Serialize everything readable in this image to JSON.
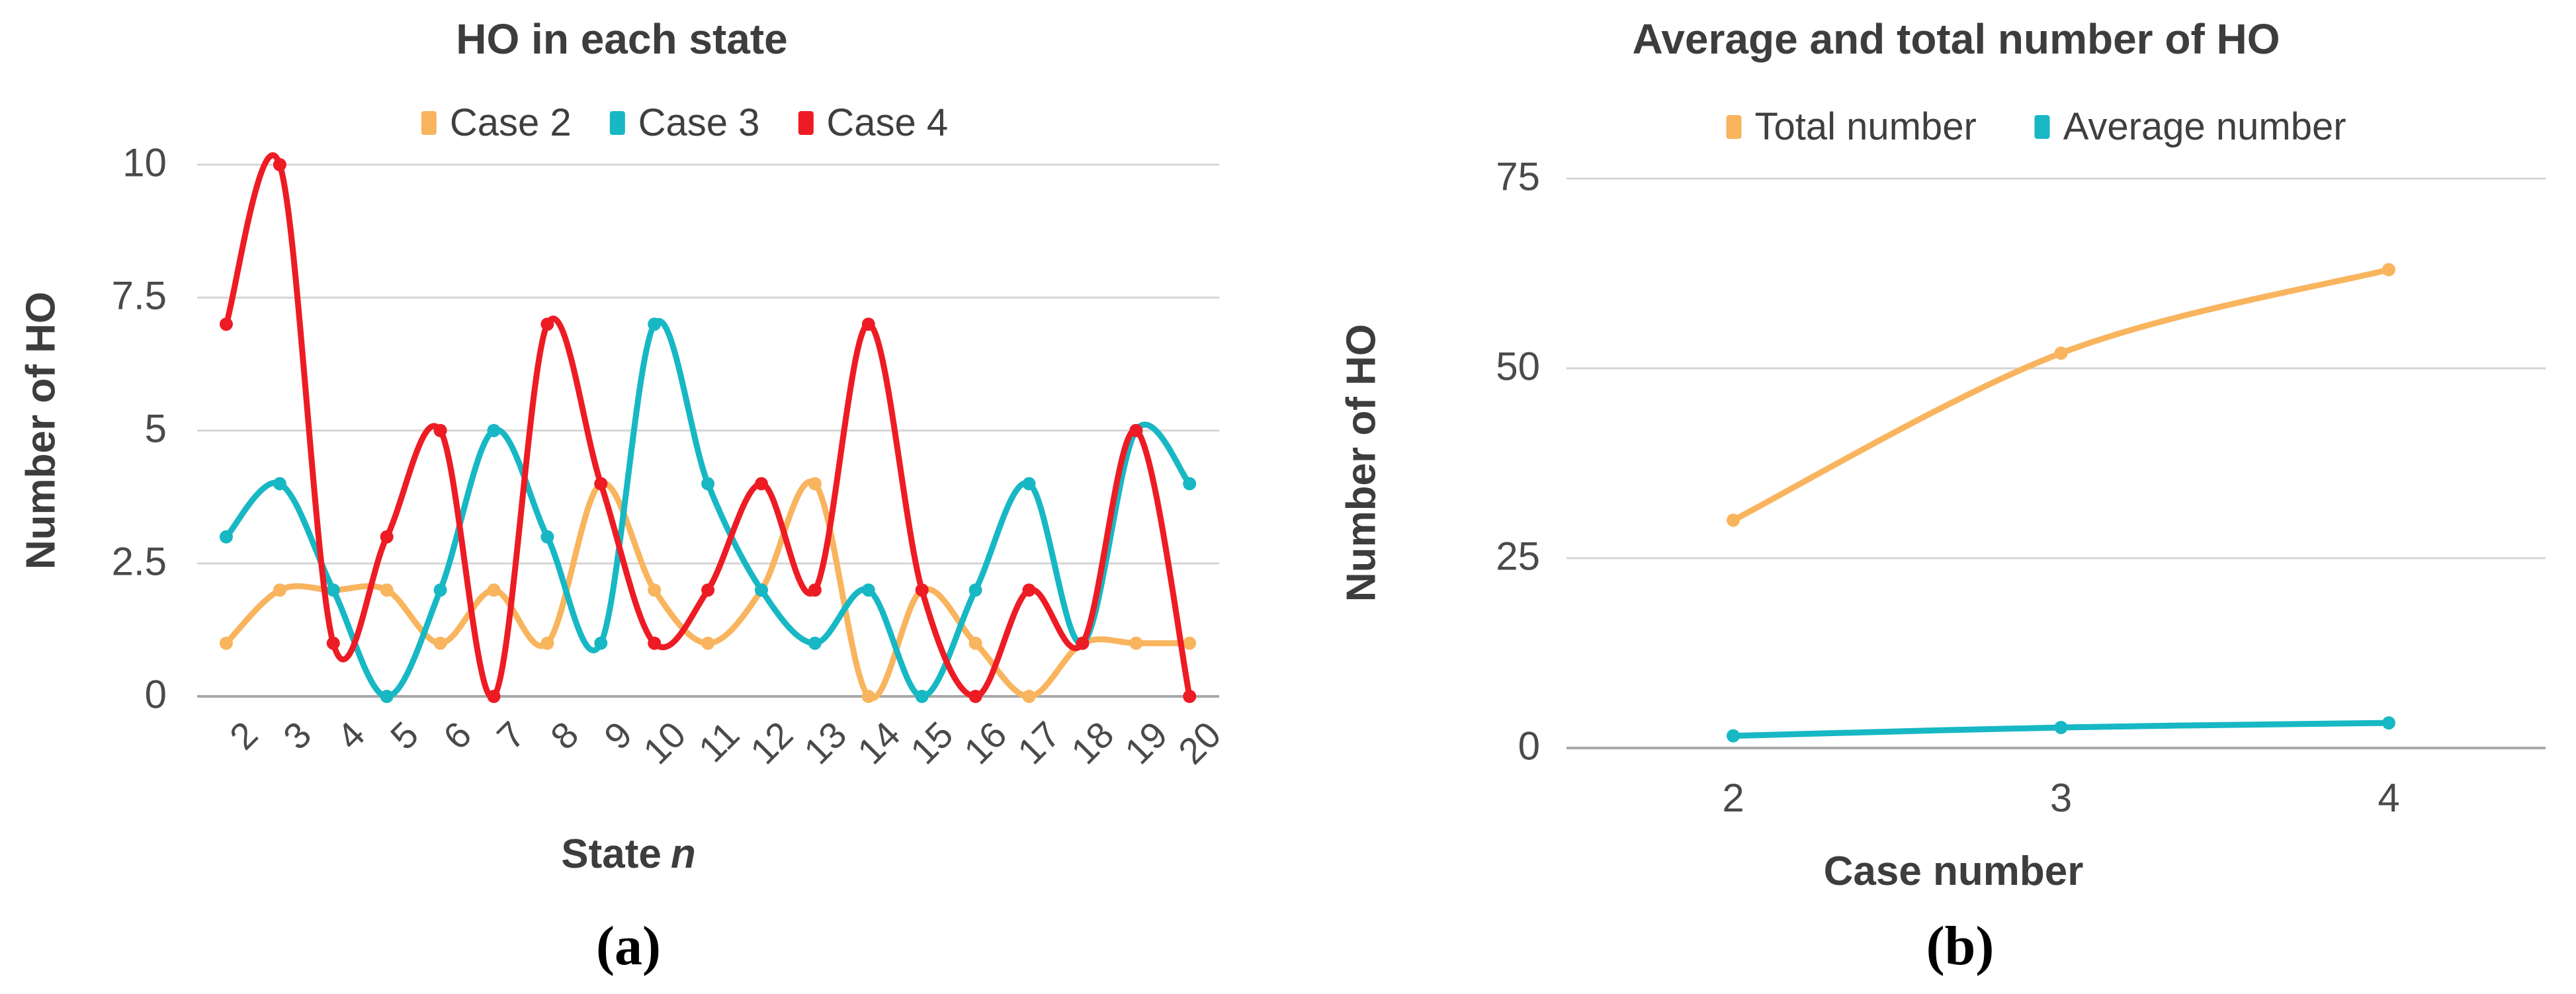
{
  "chart_data": [
    {
      "id": "a",
      "type": "line",
      "title": "HO in each state",
      "xlabel_text": "State",
      "xlabel_italic": "n",
      "ylabel": "Number of HO",
      "caption": "(a)",
      "x": [
        2,
        3,
        4,
        5,
        6,
        7,
        8,
        9,
        10,
        11,
        12,
        13,
        14,
        15,
        16,
        17,
        18,
        19,
        20
      ],
      "yticks": [
        0,
        2.5,
        5,
        7.5,
        10
      ],
      "ylim": [
        0,
        10
      ],
      "grid": true,
      "legend_position": "top",
      "series": [
        {
          "name": "Case 2",
          "color": "#F9B45E",
          "values": [
            1,
            2,
            2,
            2,
            1,
            2,
            1,
            4,
            2,
            1,
            2,
            4,
            0,
            2,
            1,
            0,
            1,
            1,
            1
          ]
        },
        {
          "name": "Case 3",
          "color": "#17B8C4",
          "values": [
            3,
            4,
            2,
            0,
            2,
            5,
            3,
            1,
            7,
            4,
            2,
            1,
            2,
            0,
            2,
            4,
            1,
            5,
            4
          ]
        },
        {
          "name": "Case 4",
          "color": "#ED1C24",
          "values": [
            7,
            10,
            1,
            3,
            5,
            0,
            7,
            4,
            1,
            2,
            4,
            2,
            7,
            2,
            0,
            2,
            1,
            5,
            0
          ]
        }
      ]
    },
    {
      "id": "b",
      "type": "line",
      "title": "Average and total number of HO",
      "xlabel_text": "Case number",
      "xlabel_italic": "",
      "ylabel": "Number of HO",
      "caption": "(b)",
      "x": [
        2,
        3,
        4
      ],
      "yticks": [
        0,
        25,
        50,
        75
      ],
      "ylim": [
        0,
        75
      ],
      "grid": true,
      "legend_position": "top",
      "series": [
        {
          "name": "Total number",
          "color": "#F9B45E",
          "values": [
            30,
            52,
            63
          ]
        },
        {
          "name": "Average number",
          "color": "#17B8C4",
          "values": [
            1.6,
            2.7,
            3.3
          ]
        }
      ]
    }
  ],
  "colors": {
    "grid": "#D5D5D5",
    "zero_line": "#A8A8A8",
    "text_dark": "#3D3D3D",
    "tick_text": "#4A4A4A"
  }
}
